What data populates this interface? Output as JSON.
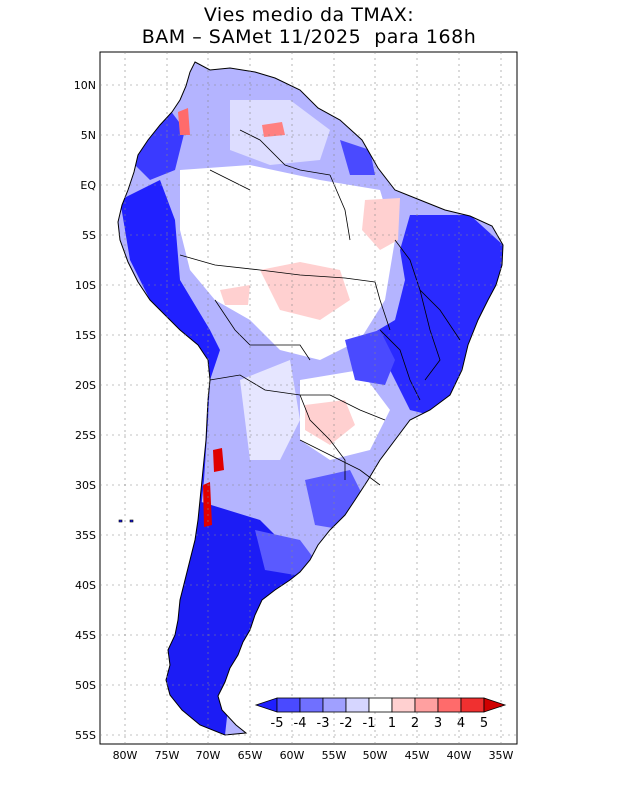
{
  "title": {
    "line1": "Vies medio da TMAX:",
    "line2": "BAM – SAMet 11/2025  para 168h"
  },
  "map": {
    "region": "South America",
    "lon_range": [
      -83,
      -34
    ],
    "lat_range": [
      -56,
      12
    ],
    "lat_ticks": [
      "10N",
      "5N",
      "EQ",
      "5S",
      "10S",
      "15S",
      "20S",
      "25S",
      "30S",
      "35S",
      "40S",
      "45S",
      "50S",
      "55S"
    ],
    "lon_ticks": [
      "80W",
      "75W",
      "70W",
      "65W",
      "60W",
      "55W",
      "50W",
      "45W",
      "40W",
      "35W"
    ]
  },
  "colorbar": {
    "levels": [
      "-5",
      "-4",
      "-3",
      "-2",
      "-1",
      "1",
      "2",
      "3",
      "4",
      "5"
    ],
    "colors": [
      "#1f1fff",
      "#4a4aff",
      "#7070ff",
      "#a0a0ff",
      "#d6d6ff",
      "#ffffff",
      "#ffd0d0",
      "#ffa0a0",
      "#ff6b6b",
      "#f03030",
      "#d00000"
    ]
  },
  "colors": {
    "strong_cold": "#1c1cf5",
    "cold": "#5a5aff",
    "mild_cold": "#b4b4ff",
    "neutral": "#ffffff",
    "mild_warm": "#ffc8c8",
    "warm": "#e00000"
  }
}
